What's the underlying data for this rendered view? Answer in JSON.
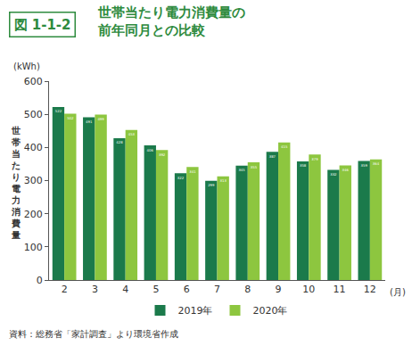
{
  "chart_data": {
    "type": "bar",
    "title": "世帯当たり電力消費量の\n前年同月との比較",
    "annotations": [
      "図 1-1-2",
      "(kWh)",
      "資料：総務省「家計調査」より環境省作成"
    ],
    "x_label": "(月)",
    "y_label": "世帯当たり電力消費量",
    "categories": [
      "2",
      "3",
      "4",
      "5",
      "6",
      "7",
      "8",
      "9",
      "10",
      "11",
      "12"
    ],
    "series": [
      {
        "name": "2019年",
        "color": "#1b7a4b",
        "values": [
          522,
          491,
          428,
          406,
          322,
          299,
          345,
          387,
          358,
          332,
          359
        ]
      },
      {
        "name": "2020年",
        "color": "#8dc63f",
        "values": [
          502,
          499,
          453,
          392,
          341,
          313,
          355,
          415,
          379,
          346,
          364
        ]
      }
    ],
    "ylim": [
      0,
      600
    ],
    "yticks": [
      0,
      100,
      200,
      300,
      400,
      500,
      600
    ],
    "grid": false,
    "legend": "bottom",
    "data_labels": true
  }
}
